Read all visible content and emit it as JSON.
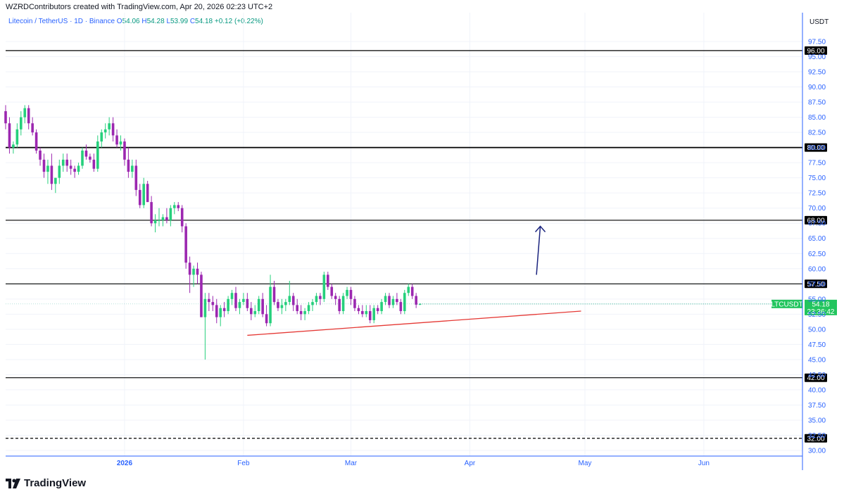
{
  "header": {
    "credit": "WZRDContributors created with TradingView.com, Apr 20, 2026 02:23 UTC+2",
    "symbol": "Litecoin / TetherUS · 1D · Binance",
    "open_label": "O",
    "open": "54.06",
    "high_label": "H",
    "high": "54.28",
    "low_label": "L",
    "low": "53.99",
    "close_label": "C",
    "close": "54.18",
    "change": "+0.12 (+0.22%)",
    "currency": "USDT"
  },
  "footer": {
    "brand": "TradingView"
  },
  "colors": {
    "up": "#089981",
    "up_candle": "#26d07c",
    "down": "#9c27b0",
    "level": "#000000",
    "trend": "#e53935",
    "arrow": "#1a237e",
    "axis_text": "#2962ff",
    "badge": "#22c55e"
  },
  "chart_data": {
    "type": "candlestick",
    "y_axis": {
      "min": 30,
      "max": 97.5,
      "ticks": [
        "30.00",
        "32.50",
        "35.00",
        "37.50",
        "40.00",
        "42.50",
        "45.00",
        "47.50",
        "50.00",
        "52.50",
        "55.00",
        "57.50",
        "60.00",
        "62.50",
        "65.00",
        "67.50",
        "70.00",
        "72.50",
        "75.00",
        "77.50",
        "80.00",
        "82.50",
        "85.00",
        "87.50",
        "90.00",
        "92.50",
        "95.00",
        "97.50"
      ]
    },
    "x_axis": {
      "labels": [
        "2026",
        "Feb",
        "Mar",
        "Apr",
        "May",
        "Jun"
      ]
    },
    "horizontal_levels": [
      {
        "value": 96.0,
        "label": "96.00",
        "style": "solid"
      },
      {
        "value": 80.0,
        "label": "80.00",
        "style": "solid"
      },
      {
        "value": 68.0,
        "label": "68.00",
        "style": "solid"
      },
      {
        "value": 57.5,
        "label": "57.50",
        "style": "solid"
      },
      {
        "value": 42.0,
        "label": "42.00",
        "style": "solid"
      },
      {
        "value": 32.0,
        "label": "32.00",
        "style": "dashed"
      }
    ],
    "trendline": {
      "from": {
        "day": "2026-02-02",
        "price": 49.0
      },
      "to": {
        "day": "2026-04-30",
        "price": 53.0
      }
    },
    "arrow": {
      "from": {
        "day": "2026-04-18",
        "price": 59.0
      },
      "to": {
        "day": "2026-04-19",
        "price": 67.0
      }
    },
    "last_price": {
      "symbol": "LTCUSDT",
      "value": "54.18",
      "countdown": "23:36:42"
    },
    "candles": [
      [
        86,
        87,
        83,
        84
      ],
      [
        84,
        85,
        79,
        80
      ],
      [
        80,
        81,
        79,
        80.5
      ],
      [
        80.5,
        84,
        80,
        83
      ],
      [
        83,
        86,
        82,
        85
      ],
      [
        85,
        87,
        84,
        86.5
      ],
      [
        86.5,
        87,
        83,
        84
      ],
      [
        84,
        85,
        82,
        82.5
      ],
      [
        82.5,
        83,
        79,
        79.5
      ],
      [
        79.5,
        80,
        77,
        78
      ],
      [
        78,
        79,
        75,
        76
      ],
      [
        76,
        78,
        74,
        77
      ],
      [
        77,
        79,
        73,
        74
      ],
      [
        74,
        75,
        72.5,
        75
      ],
      [
        75,
        78,
        74,
        77
      ],
      [
        77,
        79,
        76,
        78
      ],
      [
        78,
        79,
        76,
        77
      ],
      [
        77,
        78,
        75.5,
        76.5
      ],
      [
        76.5,
        77,
        75,
        76
      ],
      [
        76,
        77.5,
        75.5,
        77
      ],
      [
        77,
        80,
        76.5,
        79.5
      ],
      [
        79.5,
        80.5,
        78,
        78.5
      ],
      [
        78.5,
        79,
        77.5,
        78
      ],
      [
        78,
        79,
        76,
        76.5
      ],
      [
        76.5,
        82,
        76,
        81
      ],
      [
        81,
        83,
        80,
        82.5
      ],
      [
        82.5,
        84,
        81.5,
        83
      ],
      [
        83,
        85,
        82,
        84
      ],
      [
        84,
        85,
        81,
        82
      ],
      [
        82,
        83,
        80,
        80.5
      ],
      [
        80.5,
        82,
        79.5,
        81
      ],
      [
        81,
        81.5,
        77,
        78
      ],
      [
        78,
        80,
        75,
        76
      ],
      [
        76,
        78,
        75,
        77
      ],
      [
        77,
        78,
        72,
        73
      ],
      [
        73,
        74,
        70,
        70.5
      ],
      [
        70.5,
        75,
        70,
        74
      ],
      [
        74,
        74.5,
        71,
        71
      ],
      [
        71,
        72,
        67,
        67.5
      ],
      [
        67.5,
        69,
        66,
        68
      ],
      [
        68,
        70,
        67,
        68
      ],
      [
        68,
        69,
        67,
        68.5
      ],
      [
        68.5,
        70,
        67.5,
        68
      ],
      [
        68,
        70.5,
        67,
        70
      ],
      [
        70,
        71,
        69,
        70.5
      ],
      [
        70.5,
        71,
        69.5,
        70
      ],
      [
        70,
        70.5,
        66,
        67
      ],
      [
        67,
        67.5,
        60,
        61
      ],
      [
        61,
        62,
        56,
        59
      ],
      [
        59,
        60.5,
        57,
        60
      ],
      [
        60,
        61,
        57.5,
        59
      ],
      [
        59,
        59.5,
        52,
        52
      ],
      [
        52,
        56,
        45,
        55
      ],
      [
        55,
        56,
        53,
        54.5
      ],
      [
        54.5,
        55.5,
        53,
        54
      ],
      [
        54,
        55,
        51,
        52
      ],
      [
        52,
        54,
        50.5,
        53.5
      ],
      [
        53.5,
        54.5,
        52,
        53
      ],
      [
        53,
        55.5,
        52.5,
        55
      ],
      [
        55,
        56.5,
        54,
        56
      ],
      [
        56,
        57,
        53,
        53.5
      ],
      [
        53.5,
        55,
        52.5,
        54.5
      ],
      [
        54.5,
        56,
        54,
        55
      ],
      [
        55,
        56,
        53,
        53.5
      ],
      [
        53.5,
        54.5,
        51.5,
        52.5
      ],
      [
        52.5,
        54,
        52,
        53
      ],
      [
        53,
        55.5,
        52.5,
        55
      ],
      [
        55,
        56,
        52,
        52.5
      ],
      [
        52.5,
        54,
        50.5,
        51
      ],
      [
        51,
        59,
        50.5,
        57
      ],
      [
        57,
        58,
        54,
        54.5
      ],
      [
        54.5,
        55,
        53,
        53.5
      ],
      [
        53.5,
        55,
        52.5,
        54
      ],
      [
        54,
        55,
        53,
        54.5
      ],
      [
        54.5,
        58,
        54,
        55.5
      ],
      [
        55.5,
        56,
        53,
        54
      ],
      [
        54,
        55,
        52.5,
        53
      ],
      [
        53,
        54,
        51.5,
        52.5
      ],
      [
        52.5,
        53.5,
        51.5,
        53
      ],
      [
        53,
        54.5,
        52.5,
        54
      ],
      [
        54,
        55,
        53,
        54.5
      ],
      [
        54.5,
        56,
        54,
        55.5
      ],
      [
        55.5,
        56,
        54,
        55
      ],
      [
        55,
        59.5,
        54.5,
        59
      ],
      [
        59,
        59.5,
        56.5,
        57
      ],
      [
        57,
        57.5,
        55,
        55.5
      ],
      [
        55.5,
        56,
        54,
        55
      ],
      [
        55,
        55.5,
        52.5,
        53
      ],
      [
        53,
        56,
        52.5,
        55.5
      ],
      [
        55.5,
        57,
        55,
        56.5
      ],
      [
        56.5,
        57,
        54,
        55
      ],
      [
        55,
        55.5,
        53,
        53.5
      ],
      [
        53.5,
        54,
        52.5,
        53
      ],
      [
        53,
        54,
        52,
        52.5
      ],
      [
        52.5,
        54,
        52,
        53
      ],
      [
        53,
        54,
        51,
        51.5
      ],
      [
        51.5,
        54,
        51,
        53.5
      ],
      [
        53.5,
        54,
        52.5,
        53
      ],
      [
        53,
        55,
        52.5,
        54.5
      ],
      [
        54.5,
        56,
        54,
        55.5
      ],
      [
        55.5,
        56,
        53.5,
        54
      ],
      [
        54,
        55.5,
        53.5,
        55
      ],
      [
        55,
        56,
        54,
        54.5
      ],
      [
        54.5,
        55,
        52.5,
        53
      ],
      [
        53,
        56.5,
        52.5,
        56
      ],
      [
        56,
        57.5,
        55.5,
        57
      ],
      [
        57,
        57.5,
        55,
        55.5
      ],
      [
        55.5,
        56,
        53.5,
        54.06
      ],
      [
        54.06,
        54.28,
        53.99,
        54.18
      ]
    ]
  }
}
